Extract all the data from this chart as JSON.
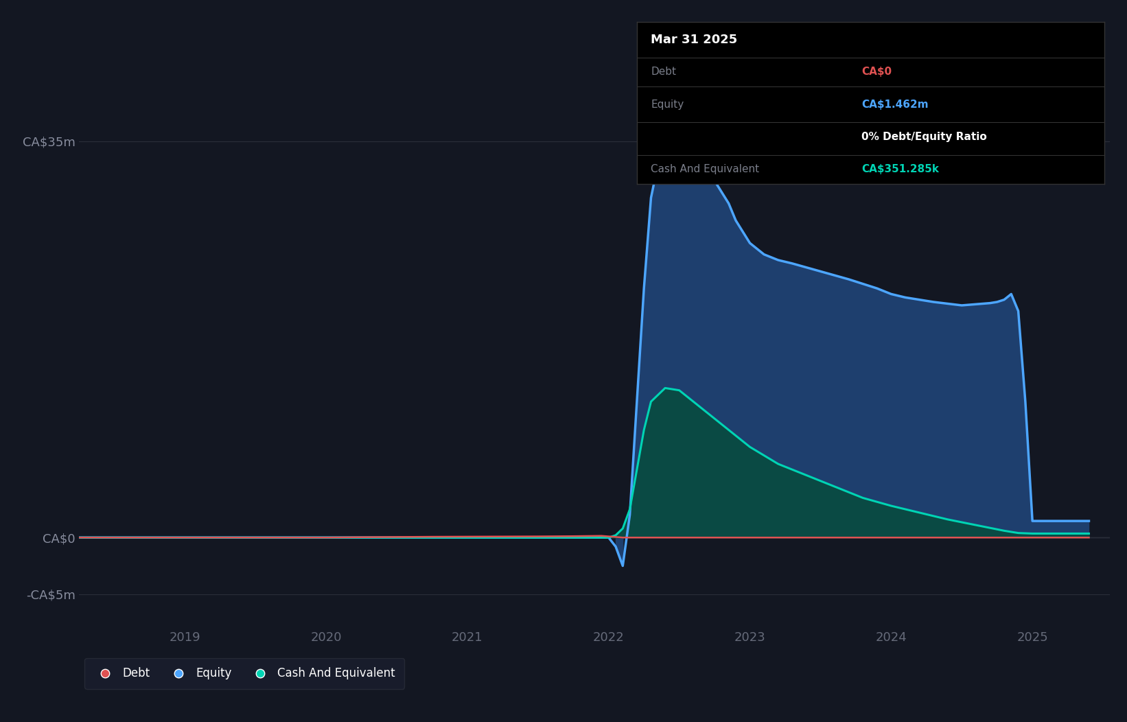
{
  "background_color": "#131722",
  "plot_bg_color": "#131722",
  "grid_color": "#2a2e39",
  "tooltip": {
    "date": "Mar 31 2025",
    "debt_label": "Debt",
    "debt_value": "CA$0",
    "equity_label": "Equity",
    "equity_value": "CA$1.462m",
    "ratio_text": "0% Debt/Equity Ratio",
    "cash_label": "Cash And Equivalent",
    "cash_value": "CA$351.285k",
    "bg_color": "#000000",
    "border_color": "#333333",
    "title_color": "#ffffff",
    "label_color": "#7a7e8a",
    "debt_color": "#e05252",
    "equity_color": "#4da6ff",
    "ratio_color": "#ffffff",
    "cash_color": "#00d4b4"
  },
  "yticks": [
    "CA$35m",
    "CA$0",
    "-CA$5m"
  ],
  "ytick_values": [
    35000000,
    0,
    -5000000
  ],
  "ylim": [
    -8000000,
    43000000
  ],
  "xlim_start": 2018.25,
  "xlim_end": 2025.55,
  "xtick_labels": [
    "2019",
    "2020",
    "2021",
    "2022",
    "2023",
    "2024",
    "2025"
  ],
  "xtick_positions": [
    2019,
    2020,
    2021,
    2022,
    2023,
    2024,
    2025
  ],
  "equity_color": "#4da6ff",
  "equity_fill_top": "#1e3f6e",
  "equity_fill_bottom": "#0d1f38",
  "debt_color": "#e05252",
  "cash_color": "#00d4b4",
  "cash_fill_top": "#0a4a44",
  "cash_fill_bottom": "#061e1c",
  "legend_bg": "#1a1e2e",
  "legend_border": "#2a2e39",
  "equity_x": [
    2018.25,
    2018.5,
    2019.0,
    2019.5,
    2020.0,
    2020.5,
    2021.0,
    2021.4,
    2021.7,
    2021.85,
    2021.92,
    2021.95,
    2022.0,
    2022.05,
    2022.1,
    2022.15,
    2022.2,
    2022.25,
    2022.3,
    2022.35,
    2022.4,
    2022.45,
    2022.5,
    2022.6,
    2022.65,
    2022.7,
    2022.75,
    2022.8,
    2022.85,
    2022.9,
    2023.0,
    2023.1,
    2023.2,
    2023.3,
    2023.5,
    2023.7,
    2023.9,
    2024.0,
    2024.1,
    2024.2,
    2024.3,
    2024.5,
    2024.6,
    2024.7,
    2024.75,
    2024.8,
    2024.85,
    2024.9,
    2024.95,
    2025.0,
    2025.05,
    2025.1,
    2025.2,
    2025.3,
    2025.4
  ],
  "equity_y": [
    0,
    0,
    0,
    0,
    0,
    0,
    0,
    0,
    0,
    0,
    0,
    0,
    0,
    -800000,
    -2500000,
    2000000,
    12000000,
    22000000,
    30000000,
    33000000,
    34500000,
    35000000,
    34500000,
    33000000,
    32500000,
    32000000,
    31500000,
    30500000,
    29500000,
    28000000,
    26000000,
    25000000,
    24500000,
    24200000,
    23500000,
    22800000,
    22000000,
    21500000,
    21200000,
    21000000,
    20800000,
    20500000,
    20600000,
    20700000,
    20800000,
    21000000,
    21500000,
    20000000,
    12000000,
    1462000,
    1462000,
    1462000,
    1462000,
    1462000,
    1462000
  ],
  "debt_x": [
    2018.25,
    2019.0,
    2019.5,
    2020.0,
    2020.25,
    2020.5,
    2020.75,
    2021.0,
    2021.25,
    2021.5,
    2021.75,
    2021.95,
    2022.0,
    2022.1,
    2022.2,
    2022.3,
    2022.5,
    2023.0,
    2023.5,
    2024.0,
    2024.5,
    2025.0,
    2025.4
  ],
  "debt_y": [
    0,
    0,
    0,
    0,
    30000,
    50000,
    70000,
    80000,
    90000,
    100000,
    120000,
    150000,
    100000,
    0,
    0,
    0,
    0,
    0,
    0,
    0,
    0,
    0,
    0
  ],
  "cash_x": [
    2018.25,
    2019.0,
    2019.5,
    2020.0,
    2020.5,
    2021.0,
    2021.5,
    2021.85,
    2021.92,
    2021.95,
    2022.0,
    2022.05,
    2022.1,
    2022.15,
    2022.2,
    2022.25,
    2022.3,
    2022.4,
    2022.5,
    2022.6,
    2022.65,
    2022.7,
    2022.75,
    2022.9,
    2023.0,
    2023.2,
    2023.4,
    2023.6,
    2023.8,
    2024.0,
    2024.2,
    2024.4,
    2024.6,
    2024.8,
    2024.9,
    2025.0,
    2025.2,
    2025.4
  ],
  "cash_y": [
    0,
    0,
    0,
    0,
    0,
    0,
    0,
    0,
    0,
    0,
    0,
    200000,
    800000,
    2500000,
    6000000,
    9500000,
    12000000,
    13200000,
    13000000,
    12000000,
    11500000,
    11000000,
    10500000,
    9000000,
    8000000,
    6500000,
    5500000,
    4500000,
    3500000,
    2800000,
    2200000,
    1600000,
    1100000,
    600000,
    400000,
    351285,
    351285,
    351285
  ]
}
